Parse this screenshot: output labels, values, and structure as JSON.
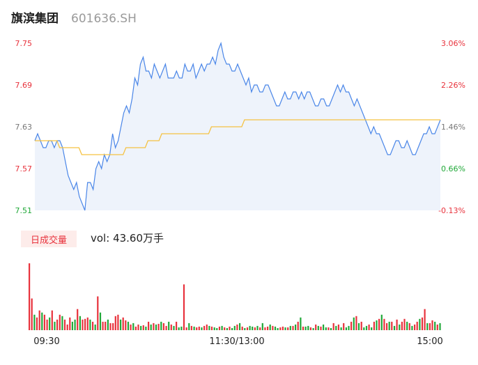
{
  "header": {
    "name": "旗滨集团",
    "code": "601636.SH"
  },
  "volume_section": {
    "badge": "日成交量",
    "label_prefix": "vol:",
    "value": "43.60万手"
  },
  "colors": {
    "price_line": "#4a86e8",
    "avg_line": "#f5c242",
    "up": "#e8323c",
    "down": "#20a838",
    "axis_text": "#777777"
  },
  "chart_data": [
    {
      "type": "line",
      "y_ticks_left": [
        "7.75",
        "7.69",
        "7.63",
        "7.57",
        "7.51"
      ],
      "y_ticks_right": [
        "3.06%",
        "2.26%",
        "1.46%",
        "0.66%",
        "-0.13%"
      ],
      "x_ticks": [
        "09:30",
        "11:30/13:00",
        "15:00"
      ],
      "ylim": [
        7.51,
        7.75
      ],
      "prev_close": 7.52,
      "series": [
        {
          "values": [
            7.61,
            7.62,
            7.61,
            7.6,
            7.6,
            7.61,
            7.61,
            7.6,
            7.61,
            7.61,
            7.6,
            7.58,
            7.56,
            7.55,
            7.54,
            7.55,
            7.53,
            7.52,
            7.51,
            7.55,
            7.55,
            7.54,
            7.57,
            7.58,
            7.57,
            7.59,
            7.58,
            7.59,
            7.62,
            7.6,
            7.61,
            7.63,
            7.65,
            7.66,
            7.65,
            7.67,
            7.7,
            7.69,
            7.72,
            7.73,
            7.71,
            7.71,
            7.7,
            7.72,
            7.71,
            7.7,
            7.71,
            7.72,
            7.7,
            7.7,
            7.7,
            7.71,
            7.7,
            7.7,
            7.72,
            7.71,
            7.71,
            7.72,
            7.7,
            7.71,
            7.72,
            7.71,
            7.72,
            7.72,
            7.73,
            7.72,
            7.74,
            7.75,
            7.73,
            7.72,
            7.72,
            7.71,
            7.71,
            7.72,
            7.71,
            7.7,
            7.69,
            7.7,
            7.68,
            7.69,
            7.69,
            7.68,
            7.68,
            7.69,
            7.69,
            7.68,
            7.67,
            7.66,
            7.66,
            7.67,
            7.68,
            7.67,
            7.67,
            7.68,
            7.68,
            7.67,
            7.68,
            7.67,
            7.68,
            7.68,
            7.67,
            7.66,
            7.66,
            7.67,
            7.67,
            7.66,
            7.66,
            7.67,
            7.68,
            7.69,
            7.68,
            7.69,
            7.68,
            7.68,
            7.67,
            7.66,
            7.67,
            7.66,
            7.65,
            7.64,
            7.63,
            7.62,
            7.63,
            7.62,
            7.62,
            7.61,
            7.6,
            7.59,
            7.59,
            7.6,
            7.61,
            7.61,
            7.6,
            7.6,
            7.61,
            7.6,
            7.59,
            7.59,
            7.6,
            7.61,
            7.62,
            7.62,
            7.63,
            7.62,
            7.62,
            7.63,
            7.64
          ]
        },
        {
          "values": [
            7.61,
            7.61,
            7.61,
            7.61,
            7.61,
            7.61,
            7.61,
            7.61,
            7.61,
            7.6,
            7.6,
            7.6,
            7.6,
            7.6,
            7.6,
            7.6,
            7.6,
            7.59,
            7.59,
            7.59,
            7.59,
            7.59,
            7.59,
            7.59,
            7.59,
            7.59,
            7.59,
            7.59,
            7.59,
            7.59,
            7.59,
            7.59,
            7.59,
            7.6,
            7.6,
            7.6,
            7.6,
            7.6,
            7.6,
            7.6,
            7.6,
            7.61,
            7.61,
            7.61,
            7.61,
            7.61,
            7.62,
            7.62,
            7.62,
            7.62,
            7.62,
            7.62,
            7.62,
            7.62,
            7.62,
            7.62,
            7.62,
            7.62,
            7.62,
            7.62,
            7.62,
            7.62,
            7.62,
            7.62,
            7.63,
            7.63,
            7.63,
            7.63,
            7.63,
            7.63,
            7.63,
            7.63,
            7.63,
            7.63,
            7.63,
            7.63,
            7.64,
            7.64,
            7.64,
            7.64,
            7.64,
            7.64,
            7.64,
            7.64,
            7.64,
            7.64,
            7.64,
            7.64,
            7.64,
            7.64,
            7.64,
            7.64,
            7.64,
            7.64,
            7.64,
            7.64,
            7.64,
            7.64,
            7.64,
            7.64,
            7.64,
            7.64,
            7.64,
            7.64,
            7.64,
            7.64,
            7.64,
            7.64,
            7.64,
            7.64,
            7.64,
            7.64,
            7.64,
            7.64,
            7.64,
            7.64,
            7.64,
            7.64,
            7.64,
            7.64,
            7.64,
            7.64,
            7.64,
            7.64,
            7.64,
            7.64,
            7.64,
            7.64,
            7.64,
            7.64,
            7.64,
            7.64,
            7.64,
            7.64,
            7.64,
            7.64,
            7.64,
            7.64,
            7.64,
            7.64,
            7.64,
            7.64,
            7.64,
            7.64,
            7.64,
            7.64,
            7.64,
            7.64
          ]
        }
      ]
    },
    {
      "type": "bar",
      "x_ticks": [
        "09:30",
        "11:30/13:00",
        "15:00"
      ],
      "values": [
        95,
        45,
        22,
        18,
        28,
        25,
        22,
        15,
        18,
        28,
        12,
        15,
        22,
        20,
        15,
        8,
        18,
        12,
        15,
        30,
        20,
        15,
        16,
        18,
        15,
        12,
        8,
        48,
        25,
        12,
        12,
        15,
        10,
        10,
        20,
        22,
        15,
        18,
        14,
        12,
        8,
        10,
        5,
        8,
        6,
        7,
        5,
        12,
        8,
        10,
        8,
        9,
        12,
        10,
        6,
        12,
        8,
        6,
        12,
        4,
        5,
        65,
        4,
        10,
        6,
        5,
        4,
        5,
        4,
        6,
        8,
        6,
        5,
        4,
        3,
        5,
        6,
        4,
        3,
        5,
        3,
        6,
        8,
        10,
        5,
        3,
        4,
        6,
        5,
        4,
        6,
        4,
        10,
        4,
        5,
        8,
        6,
        5,
        3,
        4,
        5,
        4,
        4,
        6,
        6,
        8,
        12,
        18,
        5,
        5,
        6,
        4,
        3,
        8,
        6,
        5,
        8,
        4,
        4,
        3,
        10,
        6,
        8,
        4,
        10,
        4,
        6,
        12,
        18,
        20,
        10,
        12,
        4,
        6,
        8,
        4,
        12,
        14,
        16,
        22,
        16,
        10,
        12,
        12,
        6,
        15,
        8,
        12,
        16,
        12,
        10,
        6,
        8,
        12,
        16,
        18,
        30,
        10,
        10,
        14,
        12,
        8,
        10
      ],
      "up_flags": [
        1,
        1,
        0,
        1,
        1,
        0,
        1,
        1,
        0,
        1,
        0,
        1,
        1,
        0,
        1,
        1,
        1,
        0,
        0,
        1,
        0,
        1,
        1,
        1,
        0,
        1,
        0,
        1,
        0,
        1,
        1,
        0,
        1,
        1,
        1,
        1,
        0,
        1,
        1,
        0,
        1,
        0,
        1,
        1,
        0,
        1,
        0,
        1,
        0,
        1,
        0,
        1,
        0,
        1,
        1,
        0,
        1,
        0,
        1,
        0,
        0,
        1,
        1,
        0,
        1,
        0,
        1,
        1,
        0,
        1,
        1,
        0,
        1,
        0,
        0,
        1,
        0,
        1,
        0,
        1,
        0,
        0,
        1,
        0,
        1,
        0,
        1,
        0,
        0,
        1,
        0,
        1,
        0,
        1,
        1,
        0,
        1,
        0,
        0,
        1,
        1,
        0,
        1,
        0,
        1,
        0,
        1,
        0,
        1,
        0,
        0,
        1,
        0,
        1,
        0,
        1,
        0,
        0,
        1,
        0,
        1,
        0,
        1,
        0,
        1,
        0,
        0,
        1,
        0,
        1,
        0,
        1,
        0,
        0,
        1,
        0,
        1,
        0,
        1,
        0,
        1,
        1,
        0,
        1,
        0,
        1,
        0,
        1,
        1,
        0,
        1,
        0,
        1,
        1,
        0,
        1,
        1,
        0,
        1,
        1,
        0,
        1,
        0
      ]
    }
  ]
}
